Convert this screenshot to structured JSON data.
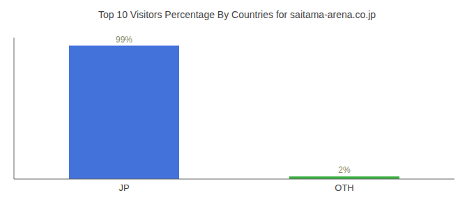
{
  "chart_data": {
    "type": "bar",
    "title": "Top 10 Visitors Percentage By Countries for saitama-arena.co.jp",
    "categories": [
      "JP",
      "OTH"
    ],
    "values": [
      99,
      2
    ],
    "value_labels": [
      "99%",
      "2%"
    ],
    "colors": [
      "#4472db",
      "#3cb043"
    ],
    "ylim": [
      0,
      105
    ],
    "data_labels": true,
    "tick_labels": "x",
    "grid": false
  }
}
